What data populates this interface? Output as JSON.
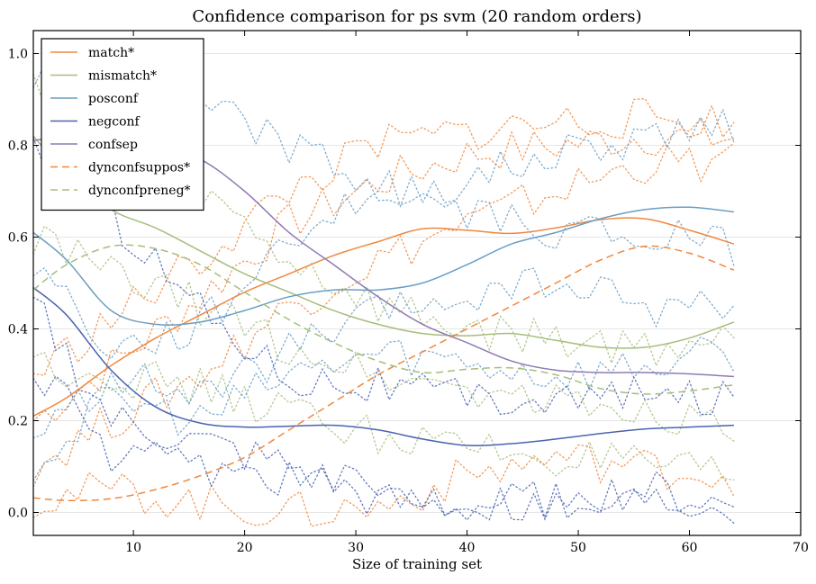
{
  "chart_data": {
    "type": "line",
    "title": "Confidence comparison for ps svm (20 random orders)",
    "xlabel": "Size of training set",
    "ylabel": "",
    "xlim": [
      1,
      70
    ],
    "ylim": [
      -0.05,
      1.05
    ],
    "xticks": [
      10,
      20,
      30,
      40,
      50,
      60,
      70
    ],
    "yticks": [
      0.0,
      0.2,
      0.4,
      0.6,
      0.8,
      1.0
    ],
    "grid": "horizontal",
    "legend_position": "top-left",
    "series": [
      {
        "name": "match*",
        "color": "#f0883e",
        "style": "solid",
        "x": [
          1,
          4,
          8,
          12,
          16,
          20,
          24,
          28,
          32,
          36,
          40,
          44,
          48,
          52,
          56,
          60,
          64
        ],
        "y": [
          0.21,
          0.25,
          0.32,
          0.38,
          0.43,
          0.48,
          0.52,
          0.56,
          0.59,
          0.618,
          0.615,
          0.608,
          0.62,
          0.638,
          0.64,
          0.615,
          0.585
        ]
      },
      {
        "name": "mismatch*",
        "color": "#a6bd7b",
        "style": "solid",
        "x": [
          1,
          4,
          8,
          12,
          16,
          20,
          24,
          28,
          32,
          36,
          40,
          44,
          48,
          52,
          56,
          60,
          64
        ],
        "y": [
          0.82,
          0.74,
          0.66,
          0.62,
          0.57,
          0.52,
          0.48,
          0.44,
          0.41,
          0.39,
          0.385,
          0.39,
          0.375,
          0.36,
          0.36,
          0.38,
          0.415
        ]
      },
      {
        "name": "posconf",
        "color": "#6a9ec4",
        "style": "solid",
        "x": [
          1,
          4,
          8,
          12,
          16,
          20,
          24,
          28,
          32,
          36,
          40,
          44,
          48,
          52,
          56,
          60,
          64
        ],
        "y": [
          0.61,
          0.55,
          0.44,
          0.41,
          0.415,
          0.44,
          0.47,
          0.485,
          0.485,
          0.5,
          0.54,
          0.585,
          0.61,
          0.64,
          0.66,
          0.665,
          0.655
        ]
      },
      {
        "name": "negconf",
        "color": "#4a63b0",
        "style": "solid",
        "x": [
          1,
          4,
          8,
          12,
          16,
          20,
          24,
          28,
          32,
          36,
          40,
          44,
          48,
          52,
          56,
          60,
          64
        ],
        "y": [
          0.49,
          0.43,
          0.31,
          0.23,
          0.195,
          0.186,
          0.188,
          0.19,
          0.18,
          0.16,
          0.146,
          0.15,
          0.16,
          0.172,
          0.182,
          0.186,
          0.19
        ]
      },
      {
        "name": "confsep",
        "color": "#8e7bb4",
        "style": "solid",
        "x": [
          1,
          4,
          8,
          12,
          16,
          20,
          24,
          28,
          32,
          36,
          40,
          44,
          48,
          52,
          56,
          60,
          64
        ],
        "y": [
          0.81,
          0.82,
          0.815,
          0.8,
          0.77,
          0.7,
          0.61,
          0.54,
          0.47,
          0.41,
          0.37,
          0.33,
          0.31,
          0.305,
          0.305,
          0.302,
          0.296
        ]
      },
      {
        "name": "dynconfsuppos*",
        "color": "#f0883e",
        "style": "dashed",
        "x": [
          1,
          4,
          8,
          12,
          16,
          20,
          24,
          28,
          32,
          36,
          40,
          44,
          48,
          52,
          56,
          60,
          64
        ],
        "y": [
          0.032,
          0.026,
          0.03,
          0.05,
          0.08,
          0.12,
          0.18,
          0.24,
          0.3,
          0.35,
          0.4,
          0.45,
          0.5,
          0.55,
          0.58,
          0.565,
          0.528
        ]
      },
      {
        "name": "dynconfpreneg*",
        "color": "#a6bd7b",
        "style": "dashed",
        "x": [
          1,
          4,
          8,
          12,
          16,
          20,
          24,
          28,
          32,
          36,
          40,
          44,
          48,
          52,
          56,
          60,
          64
        ],
        "y": [
          0.485,
          0.54,
          0.58,
          0.575,
          0.54,
          0.48,
          0.42,
          0.37,
          0.33,
          0.305,
          0.312,
          0.315,
          0.3,
          0.27,
          0.258,
          0.265,
          0.278
        ]
      }
    ],
    "background_traces": [
      {
        "color": "#f0883e",
        "x": [
          1,
          8,
          16,
          24,
          32,
          40,
          48,
          56,
          64
        ],
        "y": [
          0.2,
          0.32,
          0.47,
          0.63,
          0.72,
          0.78,
          0.8,
          0.82,
          0.815
        ]
      },
      {
        "color": "#f0883e",
        "x": [
          1,
          8,
          16,
          24,
          32,
          40,
          48,
          56,
          64
        ],
        "y": [
          0.1,
          0.2,
          0.3,
          0.45,
          0.55,
          0.63,
          0.7,
          0.76,
          0.76
        ]
      },
      {
        "color": "#f0883e",
        "x": [
          1,
          8,
          16,
          24,
          32,
          40,
          48,
          56,
          64
        ],
        "y": [
          0.3,
          0.42,
          0.55,
          0.7,
          0.8,
          0.83,
          0.85,
          0.86,
          0.85
        ]
      },
      {
        "color": "#f0883e",
        "x": [
          1,
          8,
          16,
          24,
          32,
          40,
          48,
          56,
          64
        ],
        "y": [
          0.03,
          0.05,
          0.02,
          0.0,
          0.01,
          0.08,
          0.12,
          0.1,
          0.08
        ]
      },
      {
        "color": "#a6bd7b",
        "x": [
          1,
          8,
          16,
          24,
          32,
          40,
          48,
          56,
          64
        ],
        "y": [
          0.95,
          0.8,
          0.7,
          0.55,
          0.45,
          0.4,
          0.38,
          0.36,
          0.38
        ]
      },
      {
        "color": "#a6bd7b",
        "x": [
          1,
          8,
          16,
          24,
          32,
          40,
          48,
          56,
          64
        ],
        "y": [
          0.6,
          0.52,
          0.45,
          0.36,
          0.3,
          0.27,
          0.24,
          0.22,
          0.2
        ]
      },
      {
        "color": "#a6bd7b",
        "x": [
          1,
          8,
          16,
          24,
          32,
          40,
          48,
          56,
          64
        ],
        "y": [
          0.33,
          0.3,
          0.27,
          0.22,
          0.17,
          0.14,
          0.12,
          0.1,
          0.07
        ]
      },
      {
        "color": "#6a9ec4",
        "x": [
          1,
          8,
          16,
          24,
          32,
          40,
          48,
          56,
          64
        ],
        "y": [
          0.55,
          0.35,
          0.4,
          0.6,
          0.7,
          0.72,
          0.78,
          0.82,
          0.85
        ]
      },
      {
        "color": "#6a9ec4",
        "x": [
          1,
          8,
          16,
          24,
          32,
          40,
          48,
          56,
          64
        ],
        "y": [
          0.15,
          0.3,
          0.25,
          0.35,
          0.43,
          0.47,
          0.5,
          0.45,
          0.45
        ]
      },
      {
        "color": "#6a9ec4",
        "x": [
          1,
          8,
          16,
          24,
          32,
          40,
          48,
          56,
          64
        ],
        "y": [
          0.1,
          0.25,
          0.2,
          0.3,
          0.35,
          0.33,
          0.3,
          0.32,
          0.35
        ]
      },
      {
        "color": "#4a63b0",
        "x": [
          1,
          8,
          16,
          24,
          32,
          40,
          48,
          56,
          64
        ],
        "y": [
          0.8,
          0.65,
          0.45,
          0.3,
          0.28,
          0.25,
          0.25,
          0.25,
          0.25
        ]
      },
      {
        "color": "#4a63b0",
        "x": [
          1,
          8,
          16,
          24,
          32,
          40,
          48,
          56,
          64
        ],
        "y": [
          0.32,
          0.12,
          0.1,
          0.08,
          0.05,
          0.03,
          0.02,
          0.03,
          0.02
        ]
      },
      {
        "color": "#4a63b0",
        "x": [
          1,
          8,
          16,
          24,
          32,
          40,
          48,
          56,
          64
        ],
        "y": [
          0.45,
          0.2,
          0.15,
          0.1,
          0.02,
          0.01,
          0.03,
          0.05,
          0.01
        ]
      },
      {
        "color": "#6a9ec4",
        "x": [
          1,
          8,
          16,
          24,
          32,
          40,
          48,
          56,
          64
        ],
        "y": [
          0.95,
          0.92,
          0.88,
          0.8,
          0.7,
          0.65,
          0.62,
          0.6,
          0.58
        ]
      }
    ]
  }
}
